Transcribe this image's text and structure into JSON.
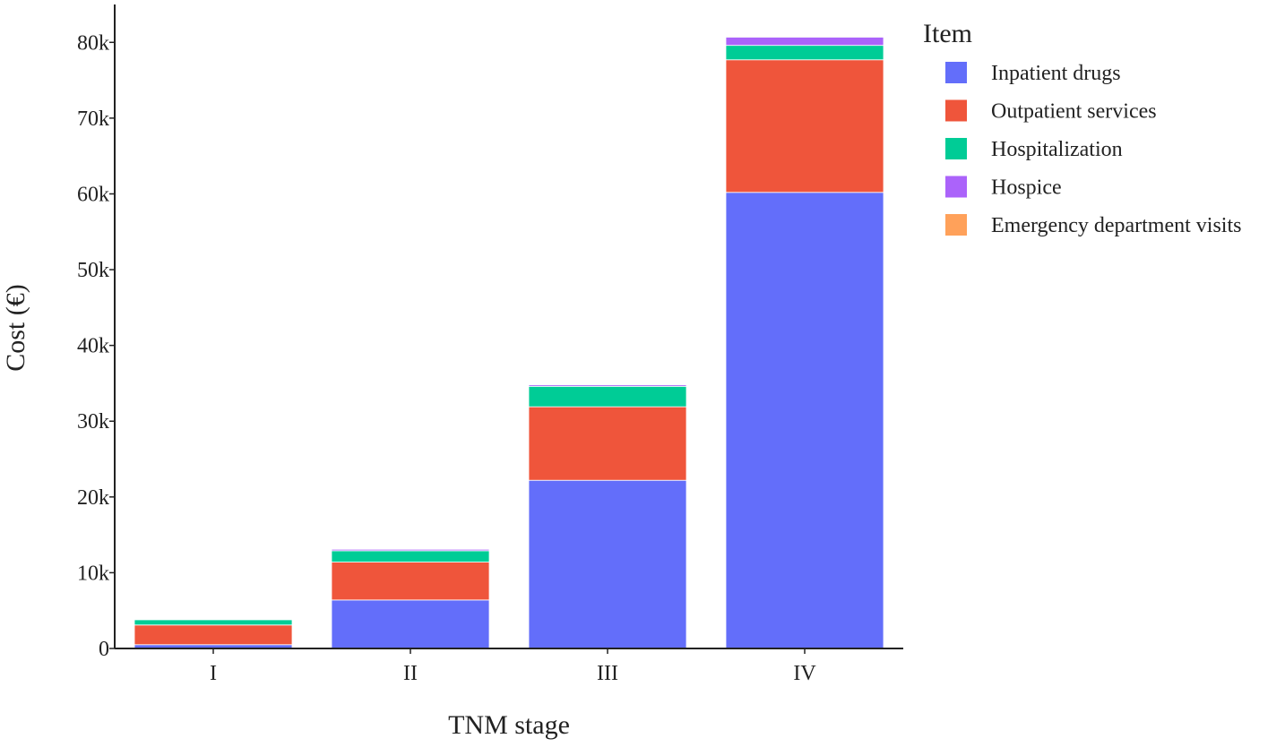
{
  "chart_data": {
    "type": "bar",
    "barmode": "stack",
    "categories": [
      "I",
      "II",
      "III",
      "IV"
    ],
    "series": [
      {
        "name": "Inpatient drugs",
        "color": "#636efa",
        "values": [
          500,
          6400,
          22200,
          60200
        ]
      },
      {
        "name": "Outpatient services",
        "color": "#ef553b",
        "values": [
          2600,
          5000,
          9700,
          17500
        ]
      },
      {
        "name": "Hospitalization",
        "color": "#00cc96",
        "values": [
          700,
          1500,
          2700,
          1900
        ]
      },
      {
        "name": "Hospice",
        "color": "#ab63fa",
        "values": [
          50,
          200,
          200,
          1100
        ]
      },
      {
        "name": "Emergency department visits",
        "color": "#ffa15a",
        "values": [
          20,
          50,
          80,
          100
        ]
      }
    ],
    "xlabel": "TNM stage",
    "ylabel": "Cost (€)",
    "ylim": [
      0,
      85000
    ],
    "yticks": [
      0,
      10000,
      20000,
      30000,
      40000,
      50000,
      60000,
      70000,
      80000
    ],
    "ytick_labels": [
      "0",
      "10k",
      "20k",
      "30k",
      "40k",
      "50k",
      "60k",
      "70k",
      "80k"
    ],
    "legend_title": "Item",
    "legend_position": "right",
    "grid": false
  }
}
